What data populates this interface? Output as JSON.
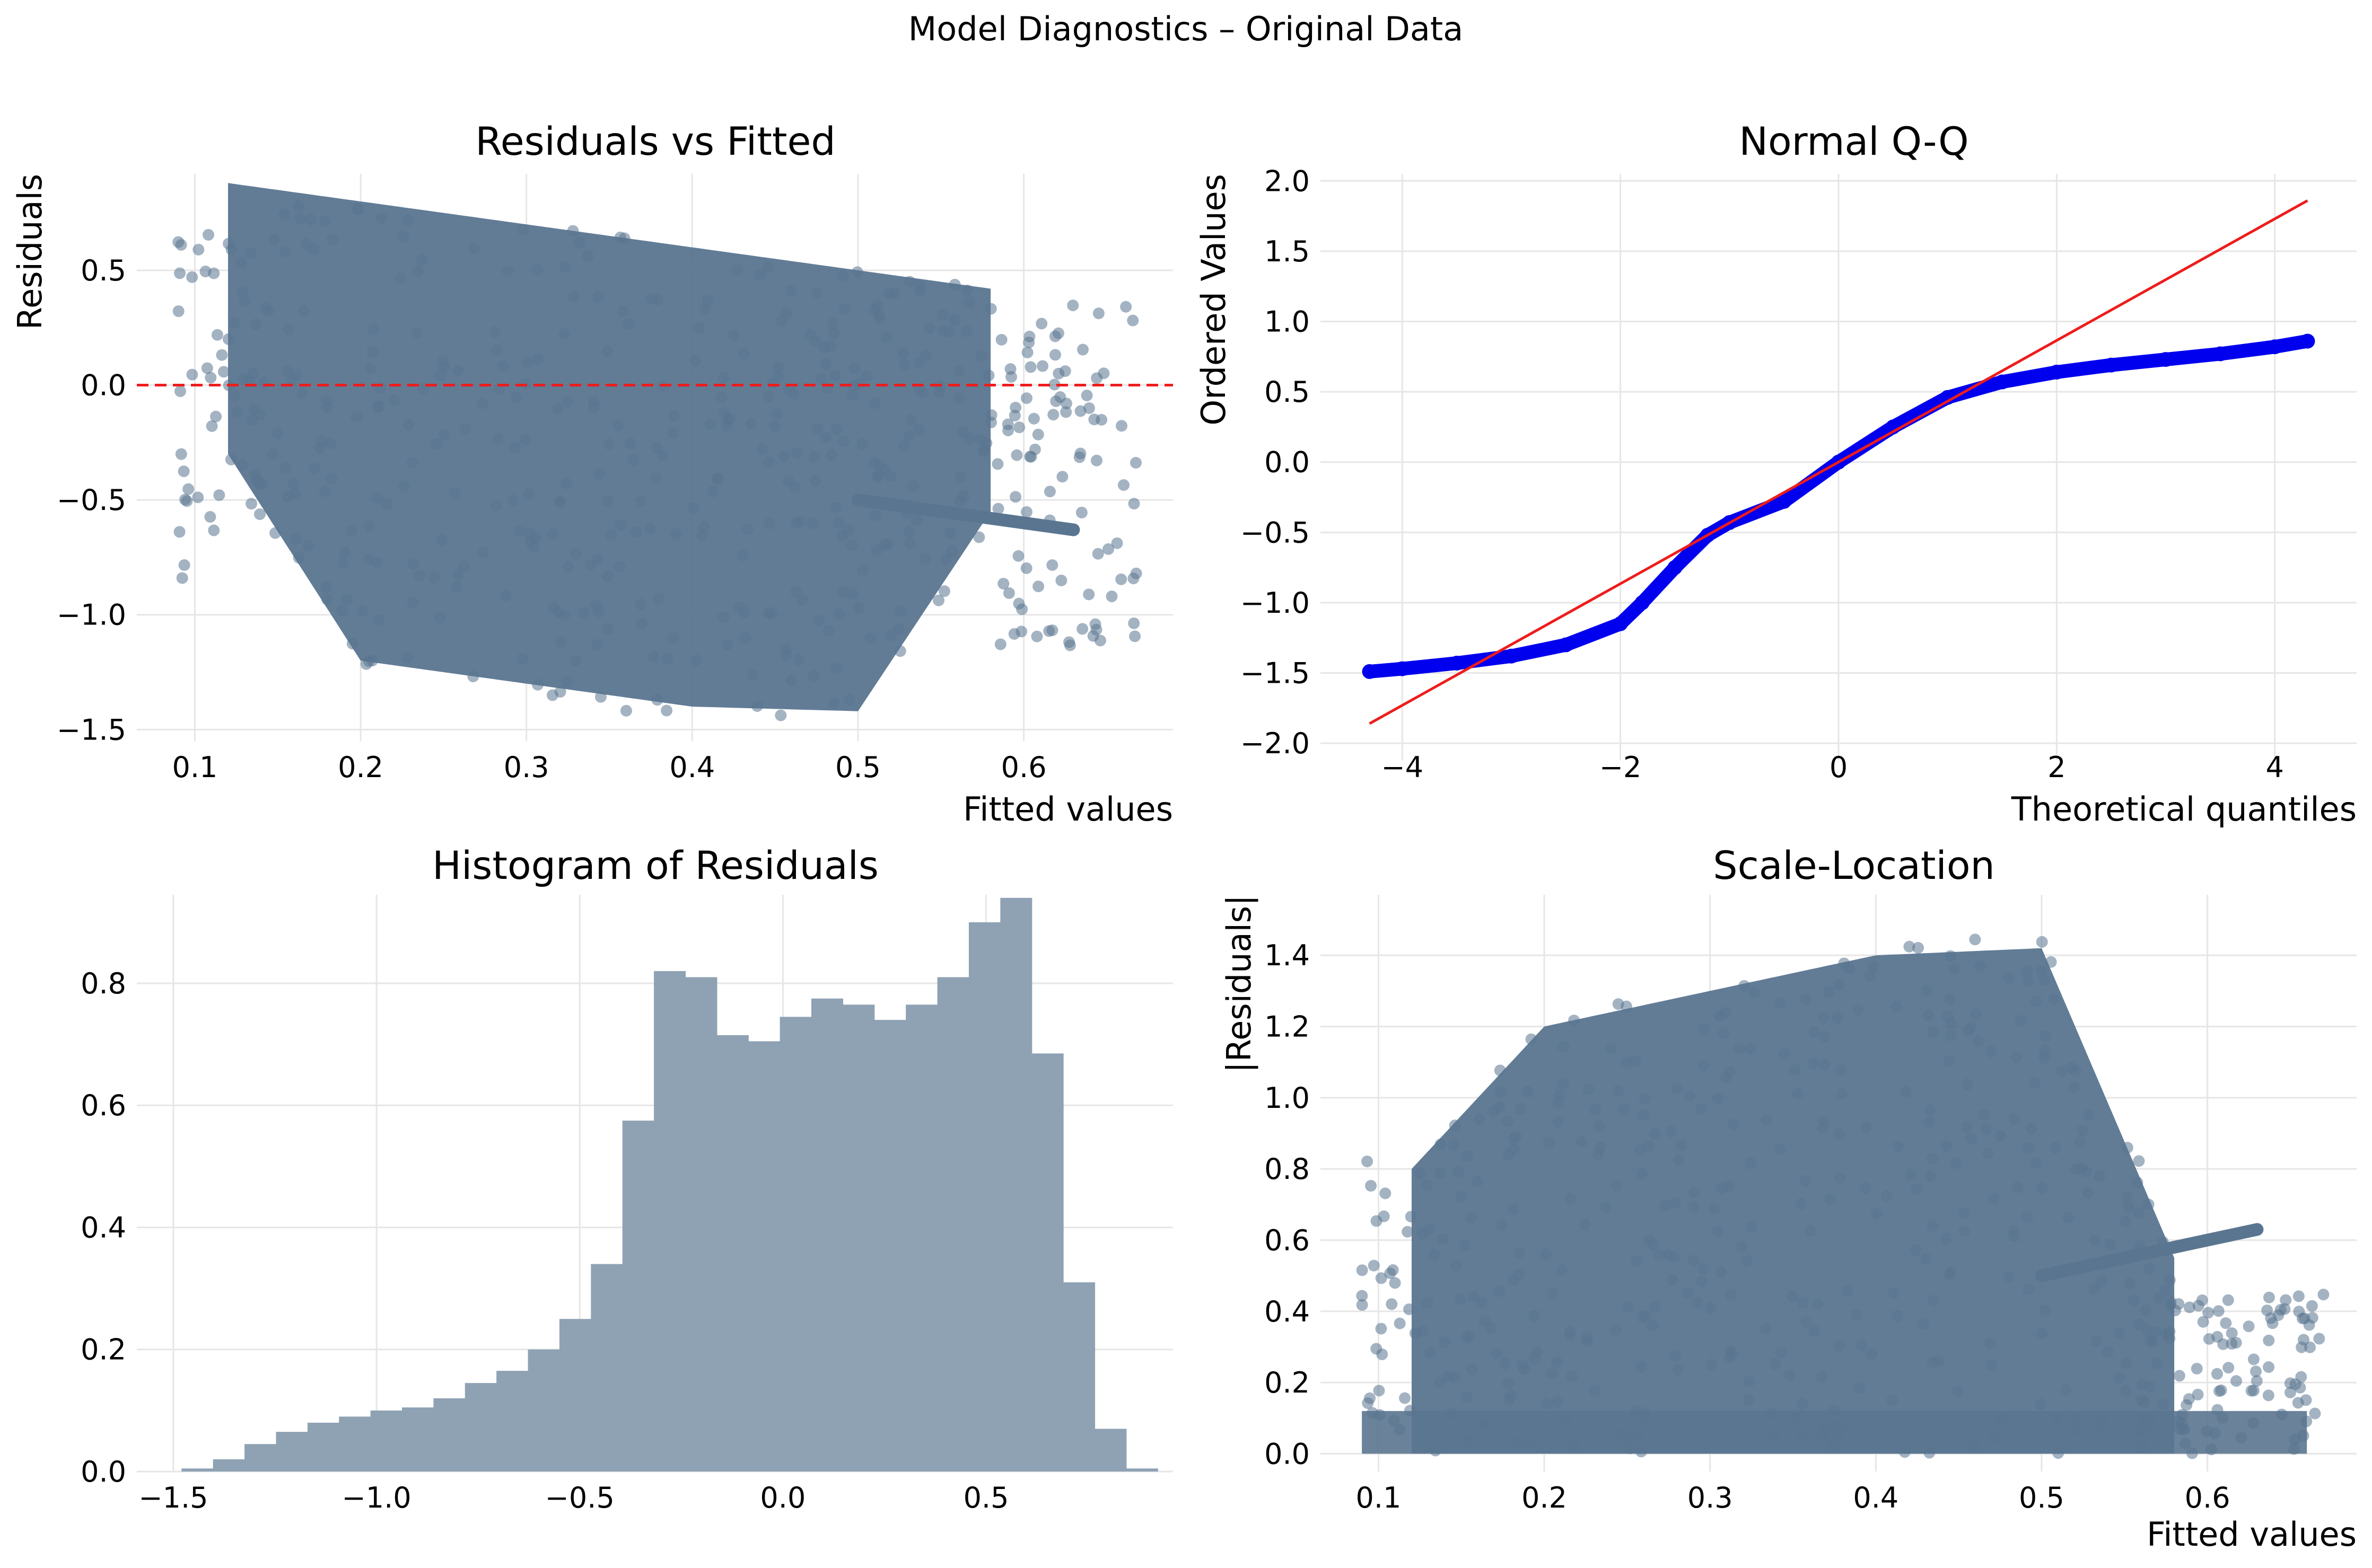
{
  "title": "Model Diagnostics – Original Data",
  "colors": {
    "points": "#5a7590",
    "bars": "#8fa2b4",
    "qq_points": "#0000ee",
    "reference_line": "#ee1c1c",
    "grid": "#e6e6e6"
  },
  "chart_data": [
    {
      "type": "scatter",
      "title": "Residuals vs Fitted",
      "xlabel": "Fitted values",
      "ylabel": "Residuals",
      "xlim": [
        0.065,
        0.69
      ],
      "ylim": [
        -1.55,
        0.92
      ],
      "xticks": [
        0.1,
        0.2,
        0.3,
        0.4,
        0.5,
        0.6
      ],
      "xtick_labels": [
        "0.1",
        "0.2",
        "0.3",
        "0.4",
        "0.5",
        "0.6"
      ],
      "yticks": [
        -1.5,
        -1.0,
        -0.5,
        0.0,
        0.5
      ],
      "ytick_labels": [
        "−1.5",
        "−1.0",
        "−0.5",
        "0.0",
        "0.5"
      ],
      "grid": true,
      "reference_line": {
        "y": 0,
        "style": "dashed"
      },
      "mass": {
        "region": "residual = observed − fitted, observed in [0, 1]",
        "x_range": [
          0.12,
          0.58
        ],
        "upper_edge": [
          [
            0.12,
            0.88
          ],
          [
            0.3,
            0.7
          ],
          [
            0.5,
            0.5
          ],
          [
            0.58,
            0.42
          ]
        ],
        "lower_edge": [
          [
            0.12,
            -0.3
          ],
          [
            0.2,
            -1.2
          ],
          [
            0.3,
            -1.3
          ],
          [
            0.4,
            -1.4
          ],
          [
            0.5,
            -1.42
          ],
          [
            0.58,
            -0.55
          ]
        ]
      },
      "streak": {
        "x": [
          0.5,
          0.63
        ],
        "y": [
          -0.5,
          -0.63
        ]
      }
    },
    {
      "type": "scatter",
      "title": "Normal Q-Q",
      "xlabel": "Theoretical quantiles",
      "ylabel": "Ordered Values",
      "xlim": [
        -4.75,
        4.75
      ],
      "ylim": [
        -2.12,
        2.05
      ],
      "xticks": [
        -4,
        -2,
        0,
        2,
        4
      ],
      "xtick_labels": [
        "−4",
        "−2",
        "0",
        "2",
        "4"
      ],
      "yticks": [
        -2.0,
        -1.5,
        -1.0,
        -0.5,
        0.0,
        0.5,
        1.0,
        1.5,
        2.0
      ],
      "ytick_labels": [
        "−2.0",
        "−1.5",
        "−1.0",
        "−0.5",
        "0.0",
        "0.5",
        "1.0",
        "1.5",
        "2.0"
      ],
      "grid": true,
      "series": [
        {
          "x": [
            -4.3,
            -4.0,
            -3.5,
            -3.0,
            -2.5,
            -2.0,
            -1.8,
            -1.5,
            -1.2,
            -1.0,
            -0.5,
            0.0,
            0.5,
            1.0,
            1.5,
            2.0,
            2.5,
            3.0,
            3.5,
            4.0,
            4.3
          ],
          "y": [
            -1.49,
            -1.47,
            -1.43,
            -1.38,
            -1.3,
            -1.15,
            -1.0,
            -0.75,
            -0.52,
            -0.43,
            -0.28,
            0.0,
            0.25,
            0.46,
            0.57,
            0.64,
            0.69,
            0.73,
            0.77,
            0.82,
            0.86
          ]
        }
      ],
      "reference_line": {
        "x": [
          -4.3,
          4.3
        ],
        "y": [
          -1.86,
          1.86
        ]
      }
    },
    {
      "type": "bar",
      "title": "Histogram of Residuals",
      "xlim": [
        -1.59,
        0.96
      ],
      "ylim": [
        0,
        0.945
      ],
      "xticks": [
        -1.5,
        -1.0,
        -0.5,
        0.0,
        0.5
      ],
      "xtick_labels": [
        "−1.5",
        "−1.0",
        "−0.5",
        "0.0",
        "0.5"
      ],
      "yticks": [
        0.0,
        0.2,
        0.4,
        0.6,
        0.8
      ],
      "ytick_labels": [
        "0.0",
        "0.2",
        "0.4",
        "0.6",
        "0.8"
      ],
      "grid": true,
      "bin_start": -1.48,
      "bin_width": 0.0775,
      "values": [
        0.005,
        0.02,
        0.045,
        0.065,
        0.08,
        0.09,
        0.1,
        0.105,
        0.12,
        0.145,
        0.165,
        0.2,
        0.25,
        0.34,
        0.575,
        0.82,
        0.81,
        0.715,
        0.705,
        0.745,
        0.775,
        0.765,
        0.74,
        0.765,
        0.81,
        0.9,
        0.94,
        0.685,
        0.31,
        0.07,
        0.005
      ]
    },
    {
      "type": "scatter",
      "title": "Scale-Location",
      "xlabel": "Fitted values",
      "ylabel": "|Residuals|",
      "xlim": [
        0.065,
        0.69
      ],
      "ylim": [
        -0.05,
        1.57
      ],
      "xticks": [
        0.1,
        0.2,
        0.3,
        0.4,
        0.5,
        0.6
      ],
      "xtick_labels": [
        "0.1",
        "0.2",
        "0.3",
        "0.4",
        "0.5",
        "0.6"
      ],
      "yticks": [
        0.0,
        0.2,
        0.4,
        0.6,
        0.8,
        1.0,
        1.2,
        1.4
      ],
      "ytick_labels": [
        "0.0",
        "0.2",
        "0.4",
        "0.6",
        "0.8",
        "1.0",
        "1.2",
        "1.4"
      ],
      "grid": true,
      "mass": {
        "x_range": [
          0.12,
          0.58
        ],
        "upper_edge": [
          [
            0.12,
            0.8
          ],
          [
            0.2,
            1.2
          ],
          [
            0.3,
            1.3
          ],
          [
            0.4,
            1.4
          ],
          [
            0.5,
            1.42
          ],
          [
            0.58,
            0.55
          ]
        ]
      },
      "streak": {
        "x": [
          0.5,
          0.63
        ],
        "y": [
          0.5,
          0.63
        ]
      }
    }
  ]
}
